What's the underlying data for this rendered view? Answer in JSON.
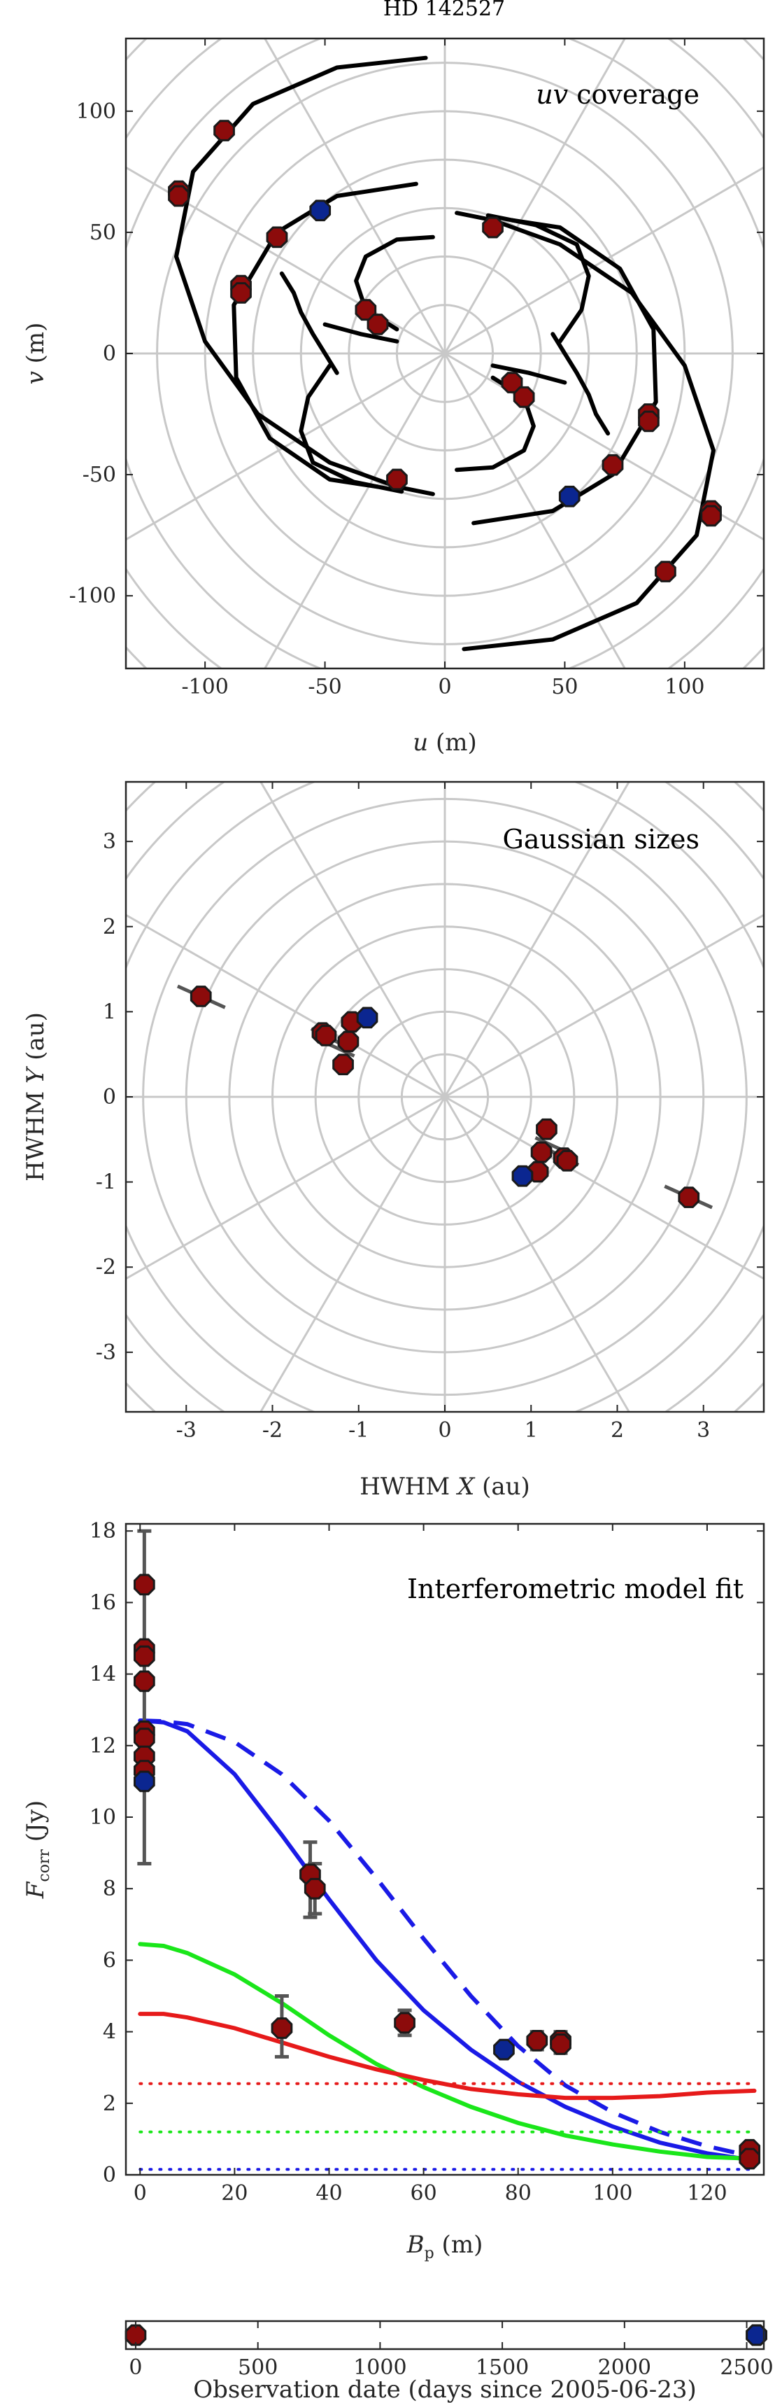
{
  "title": "HD 142527",
  "colors": {
    "marker_red": "#8c0b0b",
    "marker_blue": "#0b2690",
    "marker_edge": "#1a1a1a",
    "grid": "#c8c8c8",
    "blue_line": "#1a1ae6",
    "red_line": "#e61a1a",
    "green_line": "#1ae61a",
    "errorbar": "#555555"
  },
  "chart_data": [
    {
      "type": "scatter",
      "panel": "uv",
      "annotation_prefix": "uv",
      "annotation_suffix": " coverage",
      "xlabel_sym": "u",
      "xlabel_unit": " (m)",
      "ylabel_sym": "v",
      "ylabel_unit": " (m)",
      "xlim": [
        -133,
        133
      ],
      "ylim": [
        -130,
        130
      ],
      "xticks": [
        -100,
        -50,
        0,
        50,
        100
      ],
      "yticks": [
        -100,
        -50,
        0,
        50,
        100
      ],
      "grid": "polar",
      "tracks": [
        [
          [
            -8,
            122
          ],
          [
            -45,
            118
          ],
          [
            -80,
            103
          ],
          [
            -105,
            75
          ],
          [
            -112,
            40
          ],
          [
            -100,
            5
          ],
          [
            -78,
            -25
          ],
          [
            -48,
            -45
          ],
          [
            -20,
            -55
          ],
          [
            -5,
            -58
          ]
        ],
        [
          [
            8,
            -122
          ],
          [
            45,
            -118
          ],
          [
            80,
            -103
          ],
          [
            105,
            -75
          ],
          [
            112,
            -40
          ],
          [
            100,
            -5
          ],
          [
            78,
            25
          ],
          [
            48,
            45
          ],
          [
            20,
            55
          ],
          [
            5,
            58
          ]
        ],
        [
          [
            -12,
            70
          ],
          [
            -45,
            65
          ],
          [
            -70,
            50
          ],
          [
            -88,
            20
          ],
          [
            -87,
            -10
          ],
          [
            -73,
            -35
          ],
          [
            -48,
            -52
          ],
          [
            -28,
            -55
          ]
        ],
        [
          [
            12,
            -70
          ],
          [
            45,
            -65
          ],
          [
            70,
            -50
          ],
          [
            88,
            -20
          ],
          [
            87,
            10
          ],
          [
            73,
            35
          ],
          [
            48,
            52
          ],
          [
            28,
            55
          ]
        ],
        [
          [
            -48,
            -5
          ],
          [
            -57,
            -18
          ],
          [
            -60,
            -32
          ],
          [
            -55,
            -45
          ],
          [
            -38,
            -53
          ],
          [
            -18,
            -57
          ]
        ],
        [
          [
            48,
            5
          ],
          [
            57,
            18
          ],
          [
            60,
            32
          ],
          [
            55,
            45
          ],
          [
            38,
            53
          ],
          [
            18,
            57
          ]
        ],
        [
          [
            -5,
            48
          ],
          [
            -20,
            47
          ],
          [
            -33,
            40
          ],
          [
            -37,
            30
          ],
          [
            -33,
            18
          ],
          [
            -20,
            10
          ]
        ],
        [
          [
            5,
            -48
          ],
          [
            20,
            -47
          ],
          [
            33,
            -40
          ],
          [
            37,
            -30
          ],
          [
            33,
            -18
          ],
          [
            20,
            -10
          ]
        ],
        [
          [
            -45,
            -8
          ],
          [
            -50,
            0
          ],
          [
            -55,
            8
          ],
          [
            -60,
            17
          ],
          [
            -63,
            25
          ],
          [
            -68,
            33
          ]
        ],
        [
          [
            45,
            8
          ],
          [
            50,
            0
          ],
          [
            55,
            -8
          ],
          [
            60,
            -17
          ],
          [
            63,
            -25
          ],
          [
            68,
            -33
          ]
        ],
        [
          [
            -20,
            5
          ],
          [
            -35,
            8
          ],
          [
            -50,
            12
          ]
        ],
        [
          [
            20,
            -5
          ],
          [
            35,
            -8
          ],
          [
            50,
            -12
          ]
        ]
      ],
      "points_red": [
        [
          -111,
          67
        ],
        [
          -111,
          65
        ],
        [
          -92,
          92
        ],
        [
          -70,
          48
        ],
        [
          -85,
          28
        ],
        [
          -85,
          25
        ],
        [
          -33,
          18
        ],
        [
          -28,
          12
        ],
        [
          -20,
          -52
        ],
        [
          20,
          52
        ],
        [
          28,
          -12
        ],
        [
          33,
          -18
        ],
        [
          70,
          -46
        ],
        [
          85,
          -25
        ],
        [
          85,
          -28
        ],
        [
          111,
          -65
        ],
        [
          111,
          -67
        ],
        [
          92,
          -90
        ]
      ],
      "points_blue": [
        [
          -52,
          59
        ],
        [
          52,
          -59
        ]
      ]
    },
    {
      "type": "scatter",
      "panel": "sizes",
      "annotation": "Gaussian sizes",
      "xlabel_pre": "HWHM ",
      "xlabel_sym": "X",
      "xlabel_unit": " (au)",
      "ylabel_pre": "HWHM ",
      "ylabel_sym": "Y",
      "ylabel_unit": " (au)",
      "xlim": [
        -3.7,
        3.7
      ],
      "ylim": [
        -3.7,
        3.7
      ],
      "xticks": [
        -3,
        -2,
        -1,
        0,
        1,
        2,
        3
      ],
      "yticks": [
        -3,
        -2,
        -1,
        0,
        1,
        2,
        3
      ],
      "grid": "polar",
      "error_segments": [
        [
          [
            -3.1,
            1.3
          ],
          [
            -2.55,
            1.05
          ]
        ],
        [
          [
            -1.55,
            0.8
          ],
          [
            -1.2,
            0.62
          ]
        ],
        [
          [
            -1.35,
            0.62
          ],
          [
            -1.05,
            0.48
          ]
        ],
        [
          [
            1.55,
            -0.8
          ],
          [
            1.2,
            -0.62
          ]
        ],
        [
          [
            1.35,
            -0.62
          ],
          [
            1.05,
            -0.48
          ]
        ],
        [
          [
            3.1,
            -1.3
          ],
          [
            2.55,
            -1.05
          ]
        ],
        [
          [
            -1.0,
            0.88
          ],
          [
            -0.8,
            0.98
          ]
        ],
        [
          [
            1.0,
            -0.88
          ],
          [
            0.8,
            -0.98
          ]
        ]
      ],
      "points_red": [
        [
          -2.83,
          1.18
        ],
        [
          -1.42,
          0.75
        ],
        [
          -1.38,
          0.72
        ],
        [
          -1.08,
          0.88
        ],
        [
          -1.12,
          0.65
        ],
        [
          -1.18,
          0.38
        ],
        [
          1.18,
          -0.38
        ],
        [
          1.12,
          -0.65
        ],
        [
          1.08,
          -0.88
        ],
        [
          1.38,
          -0.72
        ],
        [
          1.42,
          -0.75
        ],
        [
          2.83,
          -1.18
        ]
      ],
      "points_blue": [
        [
          -0.9,
          0.93
        ],
        [
          0.9,
          -0.93
        ]
      ]
    },
    {
      "type": "line",
      "panel": "fit",
      "annotation": "Interferometric model fit",
      "ylabel_sym": "F",
      "ylabel_sub": "corr",
      "ylabel_unit": " (Jy)",
      "xlabel_sym": "B",
      "xlabel_sub": "p",
      "xlabel_unit": " (m)",
      "xlim": [
        -3,
        132
      ],
      "ylim": [
        0,
        18.2
      ],
      "xticks": [
        0,
        20,
        40,
        60,
        80,
        100,
        120
      ],
      "yticks": [
        0,
        2,
        4,
        6,
        8,
        10,
        12,
        14,
        16,
        18
      ],
      "series": [
        {
          "color": "#1a1ae6",
          "style": "solid",
          "x": [
            0,
            5,
            10,
            20,
            30,
            40,
            50,
            60,
            70,
            80,
            90,
            100,
            110,
            120,
            130
          ],
          "y": [
            12.7,
            12.65,
            12.4,
            11.2,
            9.5,
            7.7,
            6.0,
            4.6,
            3.5,
            2.6,
            1.9,
            1.35,
            0.9,
            0.6,
            0.4
          ]
        },
        {
          "color": "#1a1ae6",
          "style": "dashed",
          "x": [
            0,
            5,
            10,
            20,
            30,
            40,
            50,
            60,
            70,
            80,
            90,
            100,
            110,
            120,
            130
          ],
          "y": [
            12.7,
            12.68,
            12.6,
            12.1,
            11.2,
            9.9,
            8.3,
            6.6,
            5.0,
            3.6,
            2.5,
            1.75,
            1.2,
            0.8,
            0.5
          ]
        },
        {
          "color": "#1ae61a",
          "style": "solid",
          "x": [
            0,
            5,
            10,
            20,
            30,
            40,
            50,
            60,
            70,
            80,
            90,
            100,
            110,
            120,
            130
          ],
          "y": [
            6.45,
            6.4,
            6.2,
            5.6,
            4.8,
            3.9,
            3.1,
            2.45,
            1.9,
            1.45,
            1.1,
            0.85,
            0.65,
            0.5,
            0.45
          ]
        },
        {
          "color": "#e61a1a",
          "style": "solid",
          "x": [
            0,
            5,
            10,
            20,
            30,
            40,
            50,
            60,
            70,
            80,
            90,
            100,
            110,
            120,
            130
          ],
          "y": [
            4.5,
            4.5,
            4.4,
            4.1,
            3.7,
            3.3,
            2.95,
            2.65,
            2.4,
            2.25,
            2.15,
            2.15,
            2.2,
            2.3,
            2.35
          ]
        },
        {
          "color": "#e61a1a",
          "style": "dotted",
          "x": [
            0,
            130
          ],
          "y": [
            2.55,
            2.55
          ]
        },
        {
          "color": "#1ae61a",
          "style": "dotted",
          "x": [
            0,
            130
          ],
          "y": [
            1.2,
            1.2
          ]
        },
        {
          "color": "#1a1ae6",
          "style": "dotted",
          "x": [
            0,
            130
          ],
          "y": [
            0.15,
            0.15
          ]
        }
      ],
      "errorbars": [
        {
          "x": 0.9,
          "low": 8.7,
          "high": 18.0
        },
        {
          "x": 30,
          "low": 3.3,
          "high": 5.0
        },
        {
          "x": 36,
          "low": 7.2,
          "high": 9.3
        },
        {
          "x": 37,
          "low": 7.3,
          "high": 8.7
        },
        {
          "x": 56,
          "low": 3.9,
          "high": 4.6
        },
        {
          "x": 84,
          "low": 3.5,
          "high": 4.0
        },
        {
          "x": 89,
          "low": 3.4,
          "high": 4.0
        }
      ],
      "points_red": [
        [
          0.9,
          16.5
        ],
        [
          0.9,
          14.7
        ],
        [
          0.9,
          14.5
        ],
        [
          0.9,
          13.8
        ],
        [
          0.9,
          12.4
        ],
        [
          0.9,
          12.2
        ],
        [
          0.9,
          11.7
        ],
        [
          0.9,
          11.3
        ],
        [
          30,
          4.1
        ],
        [
          36,
          8.4
        ],
        [
          37,
          8.0
        ],
        [
          56,
          4.25
        ],
        [
          84,
          3.75
        ],
        [
          89,
          3.75
        ],
        [
          89,
          3.65
        ],
        [
          129,
          0.7
        ],
        [
          129,
          0.45
        ]
      ],
      "points_blue": [
        [
          0.9,
          11.0
        ],
        [
          77,
          3.5
        ]
      ]
    },
    {
      "type": "scatter",
      "panel": "dates",
      "xlabel": "Observation date (days since 2005-06-23)",
      "xlim": [
        -40,
        2570
      ],
      "ylim": [
        0,
        1
      ],
      "xticks": [
        0,
        500,
        1000,
        1500,
        2000,
        2500
      ],
      "points_red": [
        [
          0,
          0.5
        ],
        [
          2540,
          0.5
        ]
      ],
      "points_blue": [
        [
          2540,
          0.5
        ]
      ]
    }
  ]
}
